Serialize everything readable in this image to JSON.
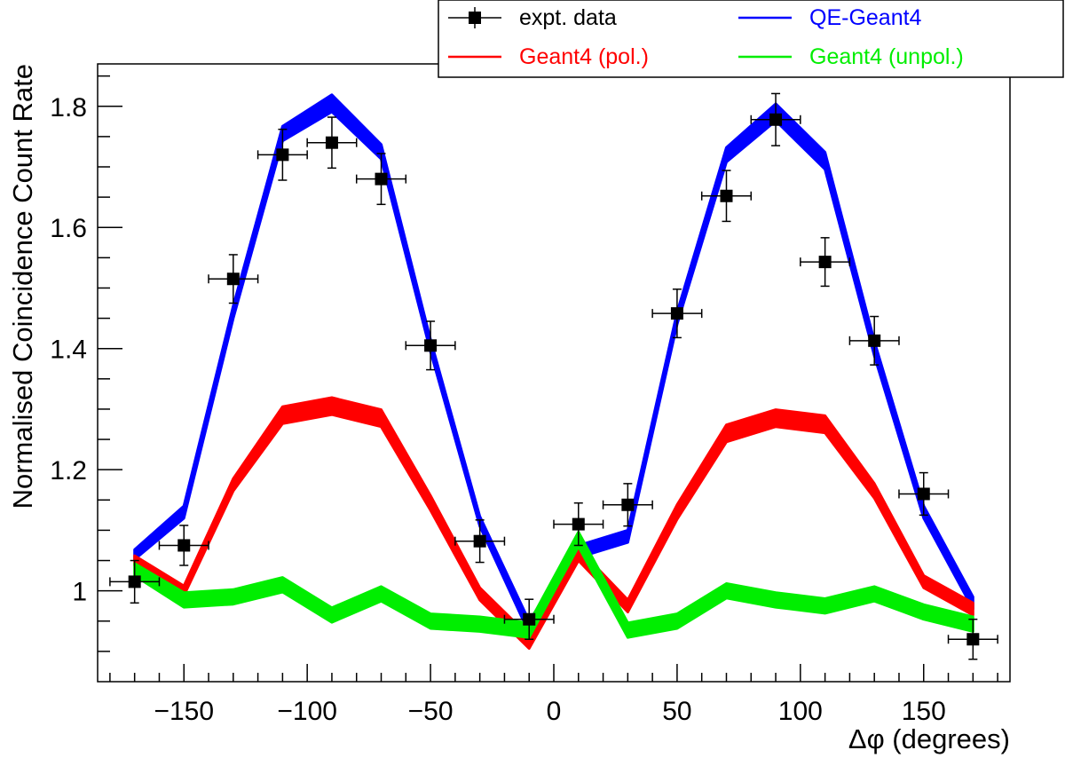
{
  "chart_data": {
    "type": "line",
    "xlabel": "Δφ (degrees)",
    "ylabel": "Normalised Coincidence Count Rate",
    "xlim": [
      -185,
      185
    ],
    "ylim": [
      0.85,
      1.87
    ],
    "x_ticks": [
      -150,
      -100,
      -50,
      0,
      50,
      100,
      150
    ],
    "x_tick_labels": [
      "−150",
      "−100",
      "−50",
      "0",
      "50",
      "100",
      "150"
    ],
    "y_ticks": [
      1.0,
      1.2,
      1.4,
      1.6,
      1.8
    ],
    "y_tick_labels": [
      "1",
      "1.2",
      "1.4",
      "1.6",
      "1.8"
    ],
    "legend_position": "top-right",
    "legend_columns": 2,
    "grid": false,
    "series": [
      {
        "name": "expt. data",
        "kind": "points",
        "color": "#000000",
        "x": [
          -170,
          -150,
          -130,
          -110,
          -90,
          -70,
          -50,
          -30,
          -10,
          10,
          30,
          50,
          70,
          90,
          110,
          130,
          150,
          170
        ],
        "y": [
          1.015,
          1.075,
          1.515,
          1.72,
          1.74,
          1.68,
          1.405,
          1.082,
          0.953,
          1.11,
          1.142,
          1.458,
          1.652,
          1.778,
          1.543,
          1.413,
          1.16,
          0.92
        ],
        "x_err": 10,
        "y_err": [
          0.035,
          0.033,
          0.04,
          0.042,
          0.042,
          0.042,
          0.04,
          0.035,
          0.033,
          0.035,
          0.035,
          0.04,
          0.042,
          0.043,
          0.04,
          0.04,
          0.035,
          0.033
        ]
      },
      {
        "name": "QE-Geant4",
        "kind": "band",
        "color": "#0000ff",
        "x": [
          -170,
          -150,
          -130,
          -110,
          -90,
          -70,
          -50,
          -30,
          -10,
          10,
          30,
          50,
          70,
          90,
          110,
          130,
          150,
          170
        ],
        "y": [
          1.06,
          1.13,
          1.46,
          1.755,
          1.805,
          1.725,
          1.405,
          1.115,
          0.94,
          1.065,
          1.09,
          1.45,
          1.72,
          1.79,
          1.71,
          1.4,
          1.13,
          0.98
        ],
        "y_err": [
          0.008,
          0.01,
          0.01,
          0.012,
          0.014,
          0.012,
          0.01,
          0.008,
          0.01,
          0.01,
          0.01,
          0.01,
          0.012,
          0.014,
          0.014,
          0.012,
          0.01,
          0.01
        ]
      },
      {
        "name": "Geant4 (pol.)",
        "kind": "band",
        "color": "#ff0000",
        "x": [
          -170,
          -150,
          -130,
          -110,
          -90,
          -70,
          -50,
          -30,
          -10,
          10,
          30,
          50,
          70,
          90,
          110,
          130,
          150,
          170
        ],
        "y": [
          1.05,
          1.0,
          1.175,
          1.29,
          1.305,
          1.285,
          1.145,
          0.995,
          0.915,
          1.06,
          0.975,
          1.13,
          1.26,
          1.285,
          1.275,
          1.165,
          1.015,
          0.97
        ],
        "y_err": [
          0.008,
          0.008,
          0.01,
          0.014,
          0.014,
          0.014,
          0.012,
          0.01,
          0.01,
          0.01,
          0.01,
          0.012,
          0.014,
          0.014,
          0.014,
          0.012,
          0.01,
          0.01
        ]
      },
      {
        "name": "Geant4 (unpol.)",
        "kind": "band",
        "color": "#00ee00",
        "x": [
          -170,
          -150,
          -130,
          -110,
          -90,
          -70,
          -50,
          -30,
          -10,
          10,
          30,
          50,
          70,
          90,
          110,
          130,
          150,
          170
        ],
        "y": [
          1.035,
          0.985,
          0.99,
          1.01,
          0.96,
          0.995,
          0.95,
          0.945,
          0.935,
          1.085,
          0.935,
          0.95,
          1.0,
          0.985,
          0.975,
          0.995,
          0.965,
          0.945
        ],
        "y_err": [
          0.01,
          0.012,
          0.012,
          0.012,
          0.012,
          0.012,
          0.012,
          0.012,
          0.012,
          0.012,
          0.012,
          0.012,
          0.012,
          0.012,
          0.012,
          0.012,
          0.012,
          0.012
        ]
      }
    ]
  }
}
